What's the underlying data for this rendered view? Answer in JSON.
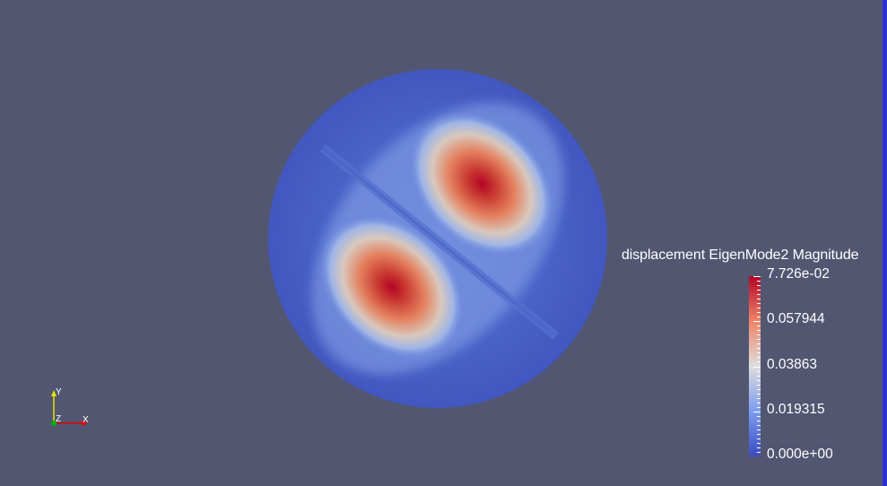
{
  "viewport": {
    "background_color": "#525671"
  },
  "legend": {
    "title": "displacement EigenMode2 Magnitude",
    "range_min": 0.0,
    "range_max": 0.07726,
    "tick_labels": [
      "7.726e-02",
      "0.057944",
      "0.03863",
      "0.019315",
      "0.000e+00"
    ],
    "colormap": [
      "#3b4cc0",
      "#7d9cf0",
      "#dddddd",
      "#ee8468",
      "#b40426"
    ]
  },
  "axes_triad": {
    "y_label": "Y",
    "z_label": "Z",
    "x_label": "X",
    "y_color": "#e6e600",
    "x_color": "#e60000",
    "z_color": "#00b400"
  },
  "field": {
    "mode": "EigenMode2",
    "lobe_count": 2,
    "peak_value": 0.07726
  }
}
